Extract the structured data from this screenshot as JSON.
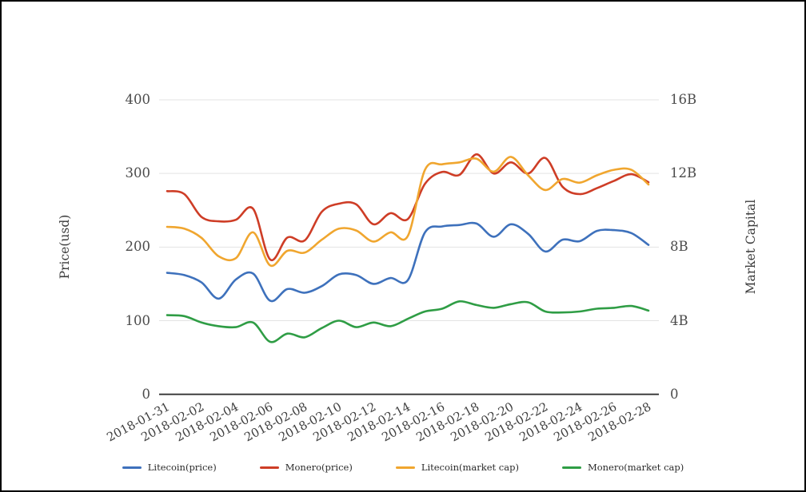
{
  "chart_data": {
    "type": "line",
    "x": [
      "2018-01-31",
      "2018-02-01",
      "2018-02-02",
      "2018-02-03",
      "2018-02-04",
      "2018-02-05",
      "2018-02-06",
      "2018-02-07",
      "2018-02-08",
      "2018-02-09",
      "2018-02-10",
      "2018-02-11",
      "2018-02-12",
      "2018-02-13",
      "2018-02-14",
      "2018-02-15",
      "2018-02-16",
      "2018-02-17",
      "2018-02-18",
      "2018-02-19",
      "2018-02-20",
      "2018-02-21",
      "2018-02-22",
      "2018-02-23",
      "2018-02-24",
      "2018-02-25",
      "2018-02-26",
      "2018-02-27",
      "2018-02-28"
    ],
    "x_tick_labels": [
      "2018-01-31",
      "2018-02-02",
      "2018-02-04",
      "2018-02-06",
      "2018-02-08",
      "2018-02-10",
      "2018-02-12",
      "2018-02-14",
      "2018-02-16",
      "2018-02-18",
      "2018-02-20",
      "2018-02-22",
      "2018-02-24",
      "2018-02-26",
      "2018-02-28"
    ],
    "series": [
      {
        "name": "Litecoin(price)",
        "axis": "left",
        "unit": "usd",
        "color": "#3E71BC",
        "values": [
          165,
          162,
          152,
          130,
          156,
          164,
          127,
          143,
          138,
          147,
          163,
          162,
          150,
          158,
          155,
          220,
          228,
          230,
          232,
          214,
          231,
          218,
          194,
          210,
          208,
          222,
          223,
          219,
          203
        ]
      },
      {
        "name": "Monero(price)",
        "axis": "left",
        "unit": "usd",
        "color": "#CE3D26",
        "values": [
          276,
          272,
          241,
          235,
          237,
          252,
          183,
          213,
          209,
          248,
          259,
          258,
          231,
          246,
          238,
          286,
          302,
          298,
          326,
          300,
          315,
          300,
          321,
          282,
          272,
          280,
          290,
          299,
          288
        ]
      },
      {
        "name": "Litecoin(market cap)",
        "axis": "right",
        "unit": "B",
        "color": "#F0A62F",
        "values": [
          9.1,
          9.0,
          8.5,
          7.5,
          7.4,
          8.8,
          7.0,
          7.8,
          7.7,
          8.4,
          9.0,
          8.9,
          8.3,
          8.8,
          8.6,
          12.2,
          12.5,
          12.6,
          12.8,
          12.1,
          12.9,
          11.9,
          11.1,
          11.7,
          11.5,
          11.9,
          12.2,
          12.2,
          11.4
        ]
      },
      {
        "name": "Monero(market cap)",
        "axis": "right",
        "unit": "B",
        "color": "#2F9D45",
        "values": [
          4.3,
          4.25,
          3.9,
          3.7,
          3.65,
          3.9,
          2.85,
          3.3,
          3.1,
          3.6,
          4.0,
          3.65,
          3.9,
          3.7,
          4.1,
          4.5,
          4.65,
          5.05,
          4.85,
          4.7,
          4.9,
          5.0,
          4.5,
          4.45,
          4.5,
          4.65,
          4.7,
          4.8,
          4.55
        ]
      }
    ],
    "axes": {
      "left": {
        "label": "Price(usd)",
        "tick_labels": [
          "0",
          "100",
          "200",
          "300",
          "400"
        ],
        "range": [
          0,
          400
        ]
      },
      "right": {
        "label": "Market Capital",
        "tick_labels": [
          "0",
          "4B",
          "8B",
          "12B",
          "16B"
        ],
        "range": [
          0,
          16
        ]
      }
    },
    "legend_position": "bottom",
    "grid": true
  },
  "colors": {
    "background": "#ffffff",
    "frame": "#000000",
    "gridline": "#e3e3e3",
    "zero_axis": "#333333",
    "tick_text": "#4b4b4b"
  }
}
